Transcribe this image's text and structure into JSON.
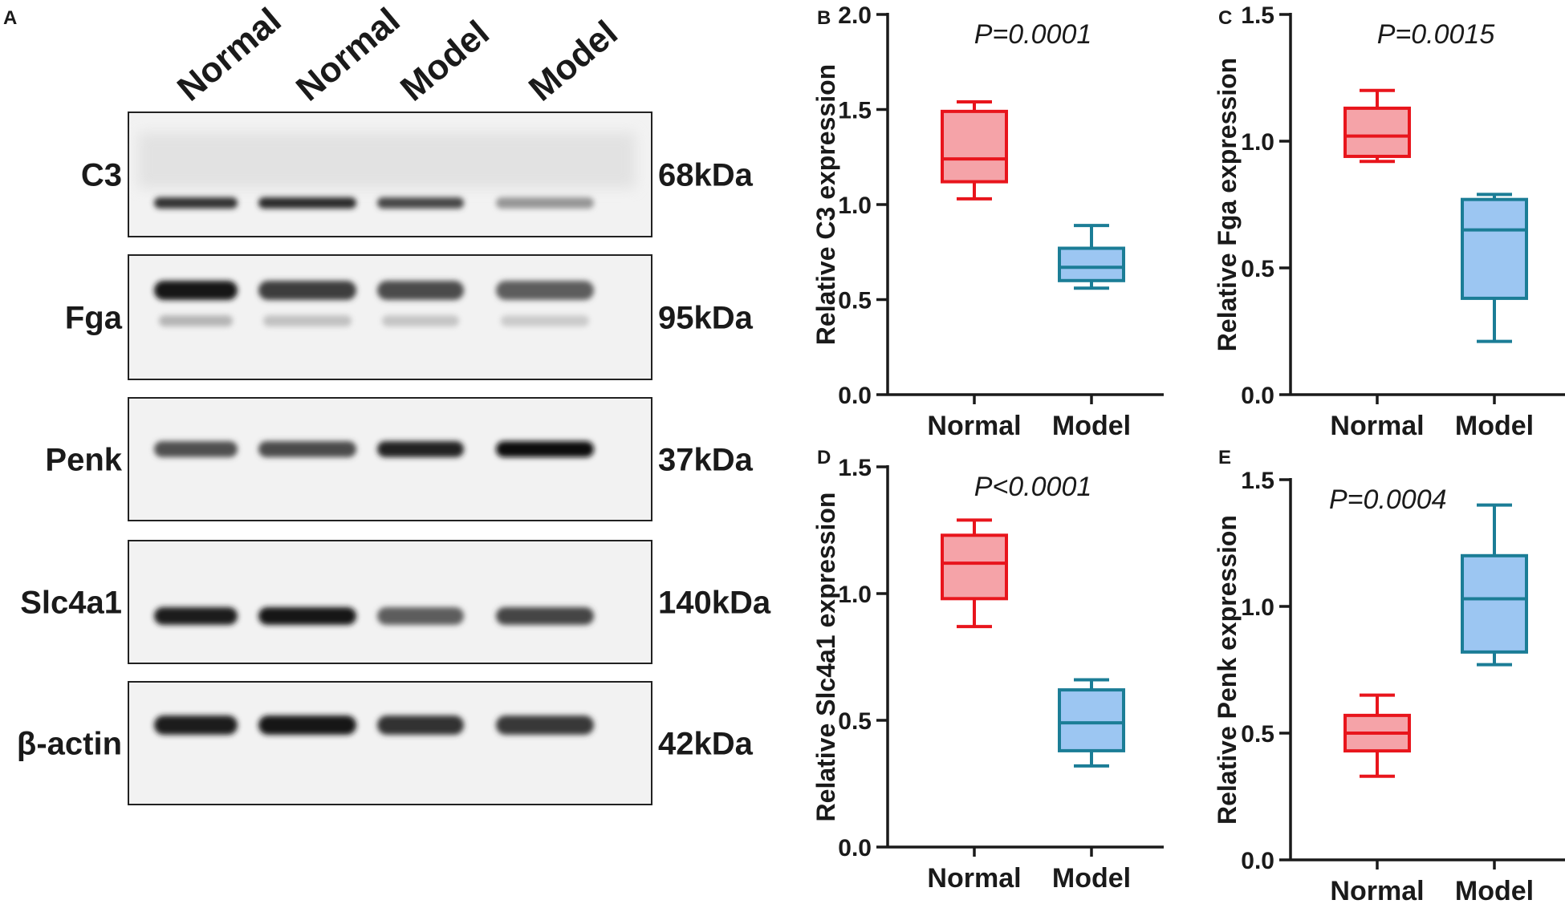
{
  "panel_letters": [
    "A",
    "B",
    "C",
    "D",
    "E"
  ],
  "blot": {
    "lane_labels": [
      "Normal",
      "Normal",
      "Model",
      "Model"
    ],
    "rows": [
      {
        "protein": "C3",
        "kda": "68kDa",
        "band_intensity": [
          0.82,
          0.85,
          0.74,
          0.42
        ]
      },
      {
        "protein": "Fga",
        "kda": "95kDa",
        "band_intensity": [
          0.92,
          0.78,
          0.72,
          0.65
        ]
      },
      {
        "protein": "Penk",
        "kda": "37kDa",
        "band_intensity": [
          0.7,
          0.72,
          0.88,
          0.96
        ]
      },
      {
        "protein": "Slc4a1",
        "kda": "140kDa",
        "band_intensity": [
          0.9,
          0.95,
          0.65,
          0.75
        ]
      },
      {
        "protein": "β-actin",
        "kda": "42kDa",
        "band_intensity": [
          0.9,
          0.92,
          0.82,
          0.8
        ]
      }
    ]
  },
  "colors": {
    "normal_stroke": "#e8151c",
    "normal_fill": "#f5a3a8",
    "model_stroke": "#1b7d96",
    "model_fill": "#9cc6f2",
    "axis": "#1a1a1a"
  },
  "chart_data": [
    {
      "panel": "B",
      "type": "box",
      "categories": [
        "Normal",
        "Model"
      ],
      "ylabel": "Relative C3 expression",
      "ylim": [
        0,
        2.0
      ],
      "yticks": [
        "0.0",
        "0.5",
        "1.0",
        "1.5",
        "2.0"
      ],
      "annotation": "P=0.0001",
      "series": [
        {
          "min": 1.03,
          "q1": 1.12,
          "median": 1.24,
          "q3": 1.49,
          "max": 1.54
        },
        {
          "min": 0.56,
          "q1": 0.6,
          "median": 0.67,
          "q3": 0.77,
          "max": 0.89
        }
      ]
    },
    {
      "panel": "C",
      "type": "box",
      "categories": [
        "Normal",
        "Model"
      ],
      "ylabel": "Relative Fga expression",
      "ylim": [
        0,
        1.5
      ],
      "yticks": [
        "0.0",
        "0.5",
        "1.0",
        "1.5"
      ],
      "annotation": "P=0.0015",
      "series": [
        {
          "min": 0.92,
          "q1": 0.94,
          "median": 1.02,
          "q3": 1.13,
          "max": 1.2
        },
        {
          "min": 0.21,
          "q1": 0.38,
          "median": 0.65,
          "q3": 0.77,
          "max": 0.79
        }
      ]
    },
    {
      "panel": "D",
      "type": "box",
      "categories": [
        "Normal",
        "Model"
      ],
      "ylabel": "Relative Slc4a1 expression",
      "ylim": [
        0,
        1.5
      ],
      "yticks": [
        "0.0",
        "0.5",
        "1.0",
        "1.5"
      ],
      "annotation": "P<0.0001",
      "series": [
        {
          "min": 0.87,
          "q1": 0.98,
          "median": 1.12,
          "q3": 1.23,
          "max": 1.29
        },
        {
          "min": 0.32,
          "q1": 0.38,
          "median": 0.49,
          "q3": 0.62,
          "max": 0.66
        }
      ]
    },
    {
      "panel": "E",
      "type": "box",
      "categories": [
        "Normal",
        "Model"
      ],
      "ylabel": "Relative Penk expression",
      "ylim": [
        0,
        1.5
      ],
      "yticks": [
        "0.0",
        "0.5",
        "1.0",
        "1.5"
      ],
      "annotation": "P=0.0004",
      "series": [
        {
          "min": 0.33,
          "q1": 0.43,
          "median": 0.5,
          "q3": 0.57,
          "max": 0.65
        },
        {
          "min": 0.77,
          "q1": 0.82,
          "median": 1.03,
          "q3": 1.2,
          "max": 1.4
        }
      ]
    }
  ]
}
